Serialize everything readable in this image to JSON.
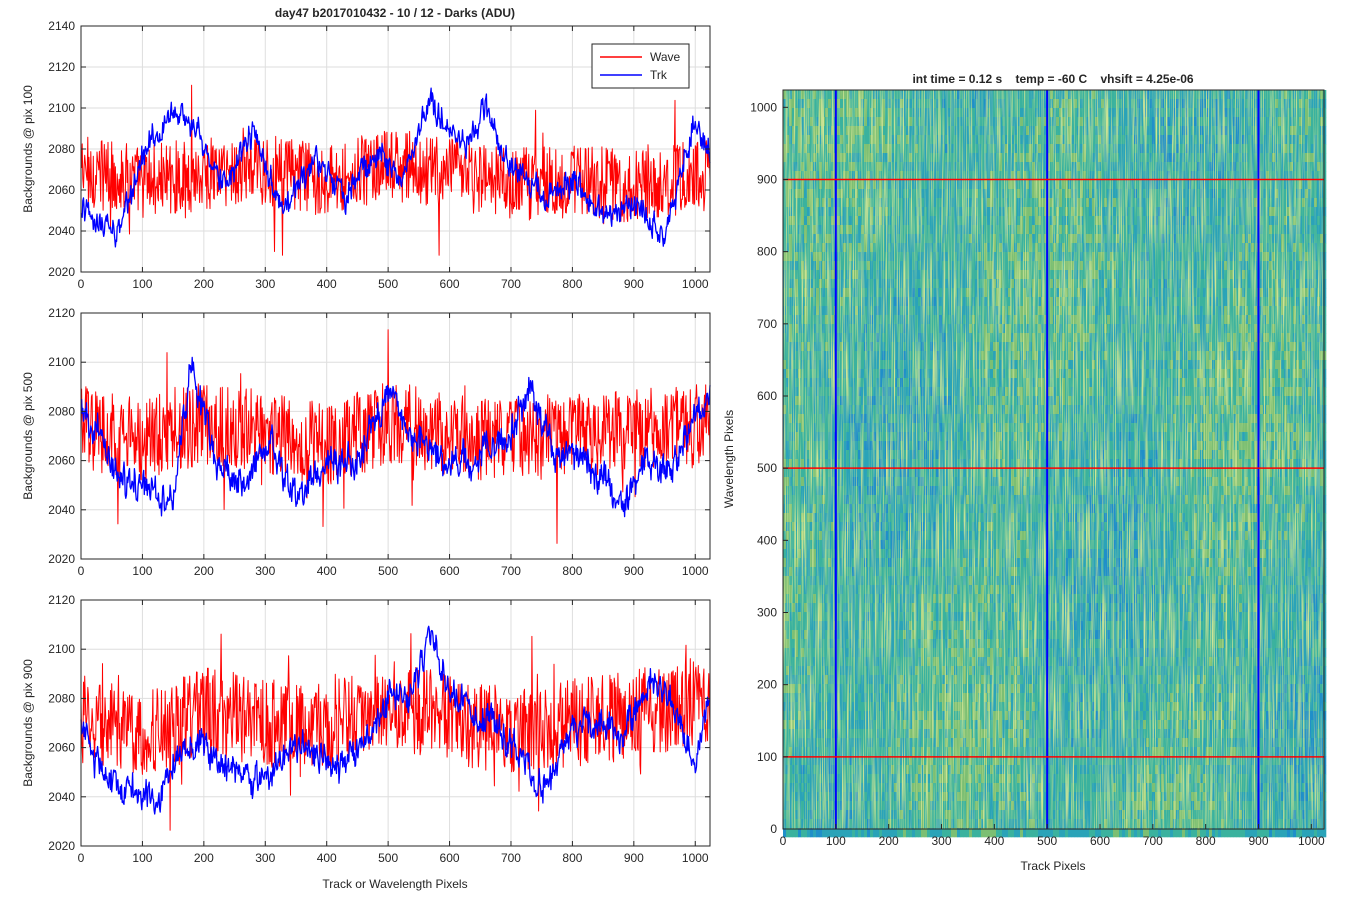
{
  "chart_data": [
    {
      "type": "line",
      "title": "day47 b2017010432 - 10 / 12 - Darks (ADU)",
      "xlabel": "",
      "ylabel": "Backgrounds @ pix 100",
      "xlim": [
        0,
        1024
      ],
      "ylim": [
        2020,
        2140
      ],
      "x_ticks": [
        0,
        100,
        200,
        300,
        400,
        500,
        600,
        700,
        800,
        900,
        1000
      ],
      "y_ticks": [
        2020,
        2040,
        2060,
        2080,
        2100,
        2120,
        2140
      ],
      "grid": true,
      "legend": {
        "position": "top-right",
        "entries": [
          "Wave",
          "Trk"
        ]
      },
      "series": [
        {
          "name": "Wave",
          "color": "#ff0000",
          "profile": [
            [
              0,
              2070
            ],
            [
              100,
              2064
            ],
            [
              200,
              2068
            ],
            [
              300,
              2070
            ],
            [
              400,
              2065
            ],
            [
              500,
              2072
            ],
            [
              600,
              2068
            ],
            [
              700,
              2063
            ],
            [
              800,
              2064
            ],
            [
              900,
              2062
            ],
            [
              1024,
              2068
            ]
          ],
          "spread": 18
        },
        {
          "name": "Trk",
          "color": "#0000ff",
          "profile": [
            [
              0,
              2050
            ],
            [
              30,
              2045
            ],
            [
              60,
              2038
            ],
            [
              100,
              2075
            ],
            [
              150,
              2100
            ],
            [
              190,
              2090
            ],
            [
              230,
              2062
            ],
            [
              280,
              2088
            ],
            [
              330,
              2048
            ],
            [
              380,
              2075
            ],
            [
              430,
              2056
            ],
            [
              480,
              2080
            ],
            [
              520,
              2064
            ],
            [
              570,
              2104
            ],
            [
              620,
              2082
            ],
            [
              660,
              2098
            ],
            [
              700,
              2072
            ],
            [
              750,
              2058
            ],
            [
              800,
              2064
            ],
            [
              850,
              2048
            ],
            [
              900,
              2052
            ],
            [
              950,
              2038
            ],
            [
              1000,
              2095
            ],
            [
              1024,
              2075
            ]
          ],
          "spread": 7
        }
      ]
    },
    {
      "type": "line",
      "title": "",
      "xlabel": "",
      "ylabel": "Backgrounds @ pix 500",
      "xlim": [
        0,
        1024
      ],
      "ylim": [
        2020,
        2120
      ],
      "x_ticks": [
        0,
        100,
        200,
        300,
        400,
        500,
        600,
        700,
        800,
        900,
        1000
      ],
      "y_ticks": [
        2020,
        2040,
        2060,
        2080,
        2100,
        2120
      ],
      "grid": true,
      "series": [
        {
          "name": "Wave",
          "color": "#ff0000",
          "profile": [
            [
              0,
              2074
            ],
            [
              100,
              2068
            ],
            [
              200,
              2075
            ],
            [
              300,
              2072
            ],
            [
              400,
              2066
            ],
            [
              500,
              2076
            ],
            [
              600,
              2070
            ],
            [
              700,
              2068
            ],
            [
              800,
              2070
            ],
            [
              900,
              2072
            ],
            [
              1024,
              2075
            ]
          ],
          "spread": 17
        },
        {
          "name": "Trk",
          "color": "#0000ff",
          "profile": [
            [
              0,
              2080
            ],
            [
              30,
              2068
            ],
            [
              60,
              2052
            ],
            [
              100,
              2050
            ],
            [
              150,
              2045
            ],
            [
              180,
              2098
            ],
            [
              220,
              2060
            ],
            [
              260,
              2050
            ],
            [
              310,
              2068
            ],
            [
              350,
              2044
            ],
            [
              400,
              2058
            ],
            [
              450,
              2060
            ],
            [
              500,
              2088
            ],
            [
              540,
              2072
            ],
            [
              580,
              2062
            ],
            [
              620,
              2058
            ],
            [
              660,
              2064
            ],
            [
              700,
              2070
            ],
            [
              730,
              2092
            ],
            [
              770,
              2062
            ],
            [
              800,
              2064
            ],
            [
              850,
              2052
            ],
            [
              880,
              2040
            ],
            [
              920,
              2060
            ],
            [
              960,
              2054
            ],
            [
              1000,
              2080
            ],
            [
              1024,
              2088
            ]
          ],
          "spread": 7
        }
      ]
    },
    {
      "type": "line",
      "title": "",
      "xlabel": "Track or Wavelength Pixels",
      "ylabel": "Backgrounds @ pix 900",
      "xlim": [
        0,
        1024
      ],
      "ylim": [
        2020,
        2120
      ],
      "x_ticks": [
        0,
        100,
        200,
        300,
        400,
        500,
        600,
        700,
        800,
        900,
        1000
      ],
      "y_ticks": [
        2020,
        2040,
        2060,
        2080,
        2100,
        2120
      ],
      "grid": true,
      "series": [
        {
          "name": "Wave",
          "color": "#ff0000",
          "profile": [
            [
              0,
              2072
            ],
            [
              100,
              2065
            ],
            [
              200,
              2075
            ],
            [
              300,
              2070
            ],
            [
              400,
              2068
            ],
            [
              500,
              2078
            ],
            [
              600,
              2072
            ],
            [
              700,
              2066
            ],
            [
              800,
              2070
            ],
            [
              900,
              2074
            ],
            [
              1024,
              2078
            ]
          ],
          "spread": 18
        },
        {
          "name": "Trk",
          "color": "#0000ff",
          "profile": [
            [
              0,
              2068
            ],
            [
              40,
              2048
            ],
            [
              80,
              2044
            ],
            [
              120,
              2036
            ],
            [
              160,
              2060
            ],
            [
              200,
              2062
            ],
            [
              250,
              2050
            ],
            [
              300,
              2048
            ],
            [
              350,
              2060
            ],
            [
              420,
              2052
            ],
            [
              470,
              2064
            ],
            [
              500,
              2082
            ],
            [
              540,
              2082
            ],
            [
              570,
              2108
            ],
            [
              600,
              2080
            ],
            [
              650,
              2074
            ],
            [
              700,
              2062
            ],
            [
              750,
              2042
            ],
            [
              800,
              2068
            ],
            [
              840,
              2072
            ],
            [
              880,
              2062
            ],
            [
              930,
              2088
            ],
            [
              960,
              2080
            ],
            [
              1000,
              2050
            ],
            [
              1024,
              2082
            ]
          ],
          "spread": 7
        }
      ]
    },
    {
      "type": "heatmap",
      "title": "int time = 0.12 s    temp = -60 C    vhsift = 4.25e-06",
      "xlabel": "Track Pixels",
      "ylabel": "Wavelength Pixels",
      "xlim": [
        0,
        1024
      ],
      "ylim": [
        0,
        1024
      ],
      "x_ticks": [
        0,
        100,
        200,
        300,
        400,
        500,
        600,
        700,
        800,
        900,
        1000
      ],
      "y_ticks": [
        0,
        100,
        200,
        300,
        400,
        500,
        600,
        700,
        800,
        900,
        1000
      ],
      "colormap": [
        "#1f8fc9",
        "#2aa3b8",
        "#3ab29e",
        "#7cbf73",
        "#bfc13f"
      ],
      "vertical_lines": {
        "x": [
          100,
          500,
          900
        ],
        "color": "#0000ff"
      },
      "horizontal_lines": {
        "y": [
          100,
          500,
          900
        ],
        "color": "#ff0000"
      }
    }
  ]
}
